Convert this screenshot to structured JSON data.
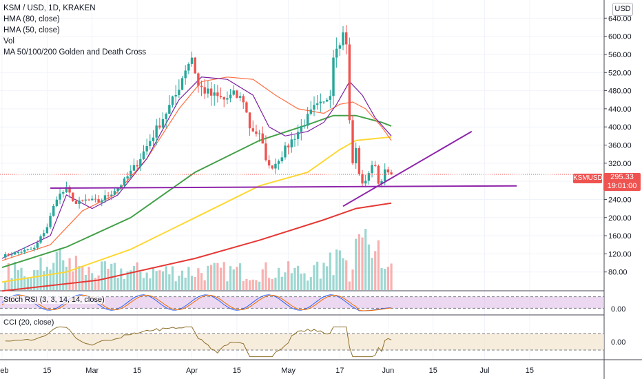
{
  "legend": {
    "title": "KSM / USD, 1D, KRAKEN",
    "hma80": "HMA (80, close)",
    "hma50": "HMA (50, close)",
    "vol": "Vol",
    "ma_cross": "MA 50/100/200 Golden and Death Cross"
  },
  "currency_button": "USD",
  "price_badge": {
    "price": "295.33",
    "countdown": "19:01:00",
    "symbol": "KSMUSD"
  },
  "stoch_label": "Stoch RSI (3, 3, 14, 14, close)",
  "cci_label": "CCI (20, close)",
  "stoch_axis_label": "0.00",
  "cci_axis_label": "0.00",
  "colors": {
    "up": "#26a69a",
    "down": "#ef5350",
    "hma80": "#ff7043",
    "hma50": "#7b1fa2",
    "ma50": "#43a047",
    "ma100": "#fdd835",
    "ma200": "#e53935",
    "trend": "#8e24aa",
    "stoch_k": "#2962ff",
    "stoch_d": "#ef6c00",
    "cci": "#8d6e2a"
  },
  "chart_data": {
    "type": "candlestick",
    "title": "KSM / USD, 1D, KRAKEN",
    "x_tick_labels": [
      "Feb",
      "15",
      "Mar",
      "15",
      "Apr",
      "15",
      "May",
      "17",
      "Jun",
      "15",
      "Jul",
      "15"
    ],
    "x_tick_days": [
      0,
      14,
      28,
      42,
      59,
      73,
      89,
      105,
      120,
      134,
      150,
      164
    ],
    "y_tick_labels": [
      "80.00",
      "120.00",
      "160.00",
      "200.00",
      "240.00",
      "280.00",
      "320.00",
      "360.00",
      "400.00",
      "440.00",
      "480.00",
      "520.00",
      "560.00",
      "600.00",
      "640.00"
    ],
    "y_ticks": [
      80,
      120,
      160,
      200,
      240,
      280,
      320,
      360,
      400,
      440,
      480,
      520,
      560,
      600,
      640
    ],
    "ylim": [
      40,
      680
    ],
    "day_range": [
      0,
      182
    ],
    "current_price": 295.33,
    "anchors": [
      [
        0,
        115
      ],
      [
        10,
        132
      ],
      [
        14,
        180
      ],
      [
        17,
        245
      ],
      [
        20,
        262
      ],
      [
        23,
        230
      ],
      [
        26,
        238
      ],
      [
        30,
        235
      ],
      [
        34,
        255
      ],
      [
        38,
        280
      ],
      [
        42,
        320
      ],
      [
        46,
        370
      ],
      [
        50,
        420
      ],
      [
        54,
        470
      ],
      [
        57,
        530
      ],
      [
        59,
        555
      ],
      [
        61,
        490
      ],
      [
        65,
        470
      ],
      [
        69,
        460
      ],
      [
        72,
        470
      ],
      [
        75,
        460
      ],
      [
        77,
        400
      ],
      [
        80,
        380
      ],
      [
        83,
        310
      ],
      [
        85,
        320
      ],
      [
        88,
        350
      ],
      [
        91,
        380
      ],
      [
        94,
        410
      ],
      [
        97,
        440
      ],
      [
        100,
        450
      ],
      [
        102,
        480
      ],
      [
        103,
        560
      ],
      [
        104,
        585
      ],
      [
        106,
        605
      ],
      [
        107,
        590
      ],
      [
        108,
        410
      ],
      [
        109,
        320
      ],
      [
        110,
        350
      ],
      [
        111,
        300
      ],
      [
        112,
        270
      ],
      [
        114,
        300
      ],
      [
        116,
        320
      ],
      [
        117,
        275
      ],
      [
        119,
        300
      ],
      [
        121,
        295.33
      ]
    ],
    "ma_cross": [
      {
        "name": "MA 50",
        "points": [
          [
            0,
            90
          ],
          [
            20,
            135
          ],
          [
            40,
            200
          ],
          [
            60,
            300
          ],
          [
            80,
            370
          ],
          [
            95,
            405
          ],
          [
            103,
            425
          ],
          [
            110,
            425
          ],
          [
            118,
            410
          ],
          [
            121,
            402
          ]
        ]
      },
      {
        "name": "MA 100",
        "points": [
          [
            0,
            58
          ],
          [
            20,
            80
          ],
          [
            40,
            130
          ],
          [
            60,
            200
          ],
          [
            80,
            270
          ],
          [
            95,
            300
          ],
          [
            105,
            350
          ],
          [
            110,
            370
          ],
          [
            121,
            378
          ]
        ]
      },
      {
        "name": "MA 200",
        "points": [
          [
            0,
            38
          ],
          [
            30,
            62
          ],
          [
            60,
            110
          ],
          [
            80,
            150
          ],
          [
            100,
            195
          ],
          [
            110,
            220
          ],
          [
            121,
            232
          ]
        ]
      }
    ],
    "hma": [
      {
        "name": "HMA (80, close)",
        "points": [
          [
            0,
            105
          ],
          [
            15,
            140
          ],
          [
            25,
            215
          ],
          [
            35,
            250
          ],
          [
            45,
            330
          ],
          [
            55,
            440
          ],
          [
            62,
            500
          ],
          [
            70,
            510
          ],
          [
            78,
            505
          ],
          [
            85,
            470
          ],
          [
            92,
            440
          ],
          [
            100,
            430
          ],
          [
            105,
            450
          ],
          [
            109,
            455
          ],
          [
            113,
            440
          ],
          [
            118,
            400
          ],
          [
            121,
            370
          ]
        ]
      },
      {
        "name": "HMA (50, close)",
        "points": [
          [
            0,
            110
          ],
          [
            15,
            160
          ],
          [
            20,
            250
          ],
          [
            28,
            220
          ],
          [
            36,
            250
          ],
          [
            45,
            330
          ],
          [
            55,
            460
          ],
          [
            62,
            510
          ],
          [
            70,
            505
          ],
          [
            78,
            470
          ],
          [
            83,
            400
          ],
          [
            88,
            380
          ],
          [
            95,
            390
          ],
          [
            100,
            410
          ],
          [
            104,
            450
          ],
          [
            108,
            500
          ],
          [
            112,
            470
          ],
          [
            116,
            420
          ],
          [
            121,
            380
          ]
        ]
      }
    ],
    "trendlines": [
      {
        "name": "horizontal-support",
        "from": [
          15,
          265
        ],
        "to": [
          160,
          270
        ]
      },
      {
        "name": "ascending-support",
        "from": [
          106,
          225
        ],
        "to": [
          146,
          390
        ]
      }
    ],
    "stoch_rsi": {
      "ylim": [
        0,
        100
      ],
      "bands": [
        20,
        80
      ]
    },
    "cci": {
      "ylim": [
        -200,
        200
      ],
      "bands": [
        -100,
        100
      ]
    }
  }
}
